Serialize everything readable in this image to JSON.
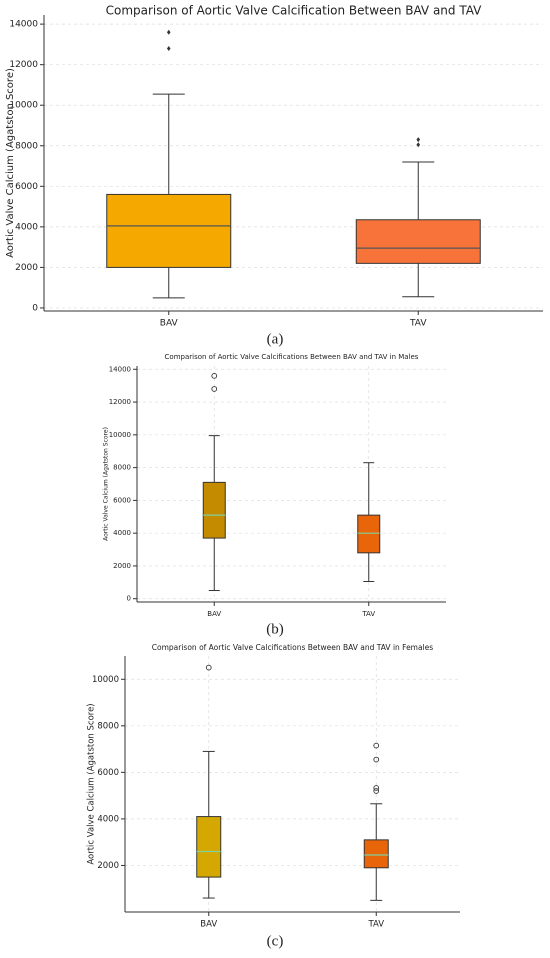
{
  "chart_data": [
    {
      "type": "box",
      "title": "Comparison of Aortic Valve Calcification Between BAV and TAV",
      "ylabel": "Aortic Valve Calcium (Agatston Score)",
      "caption": "(a)",
      "categories": [
        "BAV",
        "TAV"
      ],
      "boxes": [
        {
          "color": "#f5a800",
          "whislo": 500,
          "q1": 2000,
          "med": 4050,
          "q3": 5600,
          "whishi": 10550,
          "fliers": [
            12800,
            13600
          ]
        },
        {
          "color": "#f7733a",
          "whislo": 550,
          "q1": 2200,
          "med": 2950,
          "q3": 4350,
          "whishi": 7200,
          "fliers": [
            8050,
            8300
          ]
        }
      ],
      "ylim": [
        -150,
        14450
      ],
      "yticks": [
        0,
        2000,
        4000,
        6000,
        8000,
        10000,
        12000,
        14000
      ],
      "grid": "y",
      "median_color": "#555555",
      "flier_marker": "diamond"
    },
    {
      "type": "box",
      "title": "Comparison of Aortic Valve Calcifications Between BAV and TAV in Males",
      "ylabel": "Aortic Valve Calcium (Agatston Score)",
      "caption": "(b)",
      "categories": [
        "BAV",
        "TAV"
      ],
      "boxes": [
        {
          "color": "#c48a00",
          "whislo": 500,
          "q1": 3700,
          "med": 5100,
          "q3": 7100,
          "whishi": 9950,
          "fliers": [
            12800,
            13600
          ]
        },
        {
          "color": "#e8650a",
          "whislo": 1050,
          "q1": 2800,
          "med": 4000,
          "q3": 5100,
          "whishi": 8300,
          "fliers": []
        }
      ],
      "ylim": [
        -200,
        14200
      ],
      "yticks": [
        0,
        2000,
        4000,
        6000,
        8000,
        10000,
        12000,
        14000
      ],
      "grid": "both",
      "median_color": "#7fd1a0",
      "flier_marker": "circle"
    },
    {
      "type": "box",
      "title": "Comparison of Aortic Valve Calcifications Between BAV and TAV in Females",
      "ylabel": "Aortic Valve Calcium (Agatston Score)",
      "caption": "(c)",
      "categories": [
        "BAV",
        "TAV"
      ],
      "boxes": [
        {
          "color": "#d4a800",
          "whislo": 600,
          "q1": 1500,
          "med": 2600,
          "q3": 4100,
          "whishi": 6900,
          "fliers": [
            10500
          ]
        },
        {
          "color": "#e8650a",
          "whislo": 500,
          "q1": 1900,
          "med": 2450,
          "q3": 3100,
          "whishi": 4650,
          "fliers": [
            5200,
            5330,
            6550,
            7150
          ]
        }
      ],
      "ylim": [
        0,
        11000
      ],
      "yticks": [
        2000,
        4000,
        6000,
        8000,
        10000
      ],
      "grid": "both",
      "median_color": "#7fd1a0",
      "flier_marker": "circle"
    }
  ]
}
